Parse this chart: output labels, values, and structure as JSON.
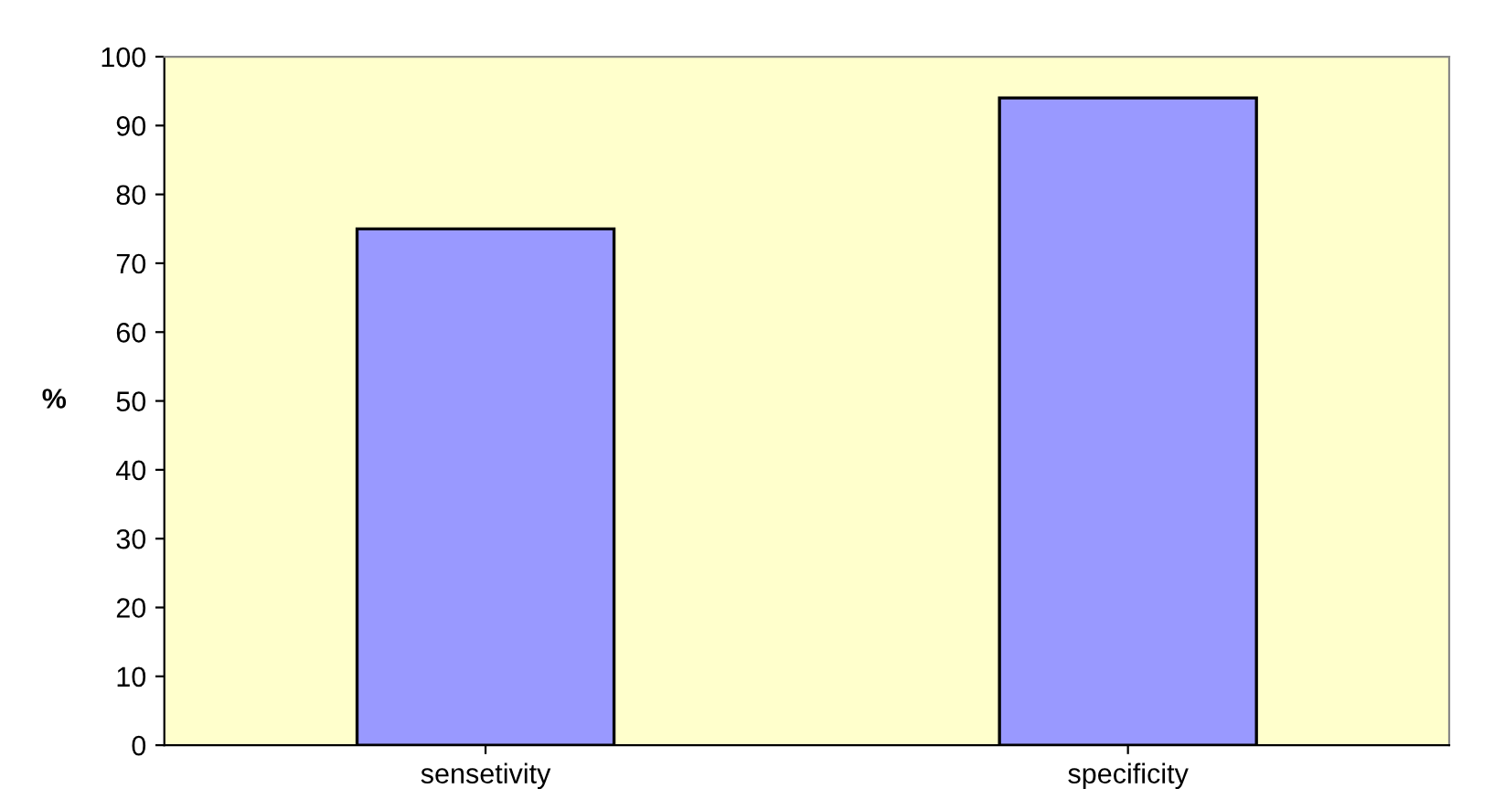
{
  "chart_data": {
    "type": "bar",
    "ylabel": "%",
    "categories": [
      "sensetivity",
      "specificity"
    ],
    "series": [
      {
        "color": "#9999ff",
        "values": [
          75,
          94
        ]
      }
    ],
    "ylim": [
      0,
      100
    ],
    "yticks": [
      0,
      10,
      20,
      30,
      40,
      50,
      60,
      70,
      80,
      90,
      100
    ],
    "grid": false
  }
}
